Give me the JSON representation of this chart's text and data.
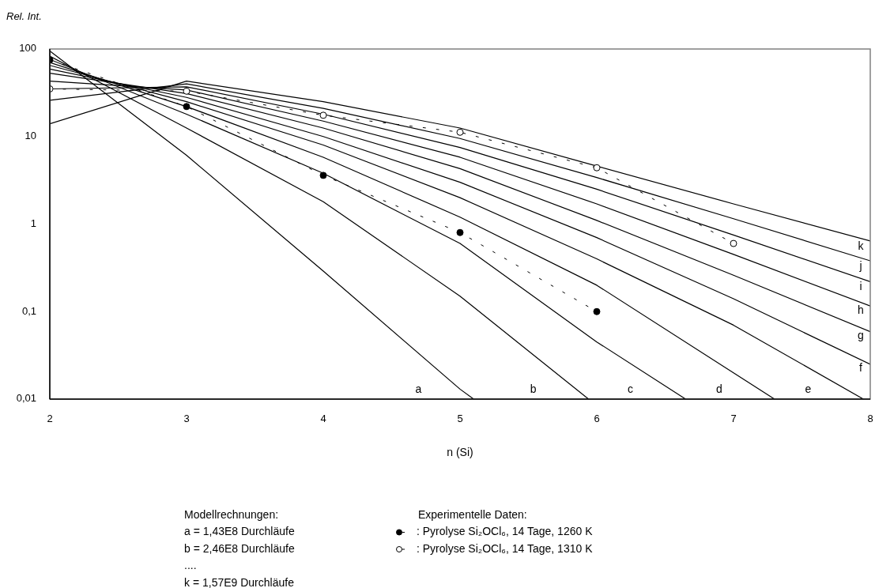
{
  "chart_data": {
    "type": "line",
    "ylabel": "Rel. Int.",
    "xlabel": "n (Si)",
    "log": "y",
    "xlim": [
      2,
      8
    ],
    "xticks": [
      2,
      3,
      4,
      5,
      6,
      7,
      8
    ],
    "ylim": [
      0.01,
      100
    ],
    "yticks": [
      {
        "value": 0.01,
        "label": "0,01"
      },
      {
        "value": 0.1,
        "label": "0,1"
      },
      {
        "value": 1,
        "label": "1"
      },
      {
        "value": 10,
        "label": "10"
      },
      {
        "value": 100,
        "label": "100"
      }
    ],
    "grid": false,
    "legend": "bottom",
    "legend_title": "Experimentelle Daten:",
    "marker": "none",
    "line_style": "solid",
    "series": [
      {
        "name": "a",
        "color": "#000000",
        "x": [
          2,
          3,
          4,
          5,
          5.1
        ],
        "values": [
          95,
          6.1,
          0.29,
          0.013,
          0.01
        ]
      },
      {
        "name": "b",
        "color": "#000000",
        "x": [
          2,
          3,
          4,
          5,
          5.94
        ],
        "values": [
          83,
          12.5,
          1.8,
          0.15,
          0.01
        ]
      },
      {
        "name": "c",
        "color": "#000000",
        "x": [
          2,
          3,
          4,
          5,
          6,
          6.65
        ],
        "values": [
          76,
          18,
          3.8,
          0.6,
          0.045,
          0.01
        ]
      },
      {
        "name": "d",
        "color": "#000000",
        "x": [
          2,
          3,
          4,
          5,
          6,
          7,
          7.3
        ],
        "values": [
          70,
          22,
          5.8,
          1.2,
          0.2,
          0.02,
          0.01
        ]
      },
      {
        "name": "e",
        "color": "#000000",
        "x": [
          2,
          3,
          4,
          5,
          6,
          7,
          7.95
        ],
        "values": [
          65,
          25,
          8,
          2,
          0.4,
          0.07,
          0.01
        ]
      },
      {
        "name": "f",
        "color": "#000000",
        "x": [
          2,
          3,
          4,
          5,
          6,
          7,
          8
        ],
        "values": [
          59,
          28,
          10,
          3,
          0.7,
          0.14,
          0.025
        ]
      },
      {
        "name": "g",
        "color": "#000000",
        "x": [
          2,
          3,
          4,
          5,
          6,
          7,
          8
        ],
        "values": [
          53,
          31,
          12.5,
          4.3,
          1.1,
          0.26,
          0.059
        ]
      },
      {
        "name": "h",
        "color": "#000000",
        "x": [
          2,
          3,
          4,
          5,
          6,
          7,
          8
        ],
        "values": [
          43,
          34,
          15,
          5.8,
          1.7,
          0.45,
          0.116
        ]
      },
      {
        "name": "i",
        "color": "#000000",
        "x": [
          2,
          3,
          4,
          5,
          6,
          7,
          8
        ],
        "values": [
          35,
          37,
          18,
          7.5,
          2.5,
          0.75,
          0.22
        ]
      },
      {
        "name": "j",
        "color": "#000000",
        "x": [
          2,
          3,
          4,
          5,
          6,
          7,
          8
        ],
        "values": [
          26,
          40,
          21,
          9.5,
          3.4,
          1.15,
          0.38
        ]
      },
      {
        "name": "k",
        "color": "#000000",
        "x": [
          2,
          3,
          4,
          5,
          6,
          7,
          8
        ],
        "values": [
          14,
          43,
          25,
          12.5,
          4.6,
          1.7,
          0.64
        ]
      },
      {
        "name": ": Pyrolyse Si₂OCl₆, 14 Tage, 1260 K",
        "color": "#000000",
        "marker": "circle",
        "line_style": "dashed",
        "x": [
          2,
          3,
          4,
          5,
          6
        ],
        "values": [
          75,
          22,
          3.6,
          0.8,
          0.1
        ]
      },
      {
        "name": ": Pyrolyse Si₂OCl₆, 14 Tage, 1310 K",
        "color": "#000000",
        "marker": "circle",
        "colors": [
          "#ffffff",
          "#ffffff",
          "#ffffff",
          "#ffffff",
          "#ffffff",
          "#ffffff"
        ],
        "line_style": "dashed",
        "x": [
          2,
          3,
          4,
          5,
          6,
          7
        ],
        "values": [
          35,
          33,
          17.5,
          11.2,
          4.4,
          0.6
        ]
      }
    ],
    "annotations": [
      "Modellrechnungen:",
      "a =  1,43E8 Durchläufe",
      "b =  2,46E8 Durchläufe",
      "....",
      "k =  1,57E9 Durchläufe"
    ]
  }
}
